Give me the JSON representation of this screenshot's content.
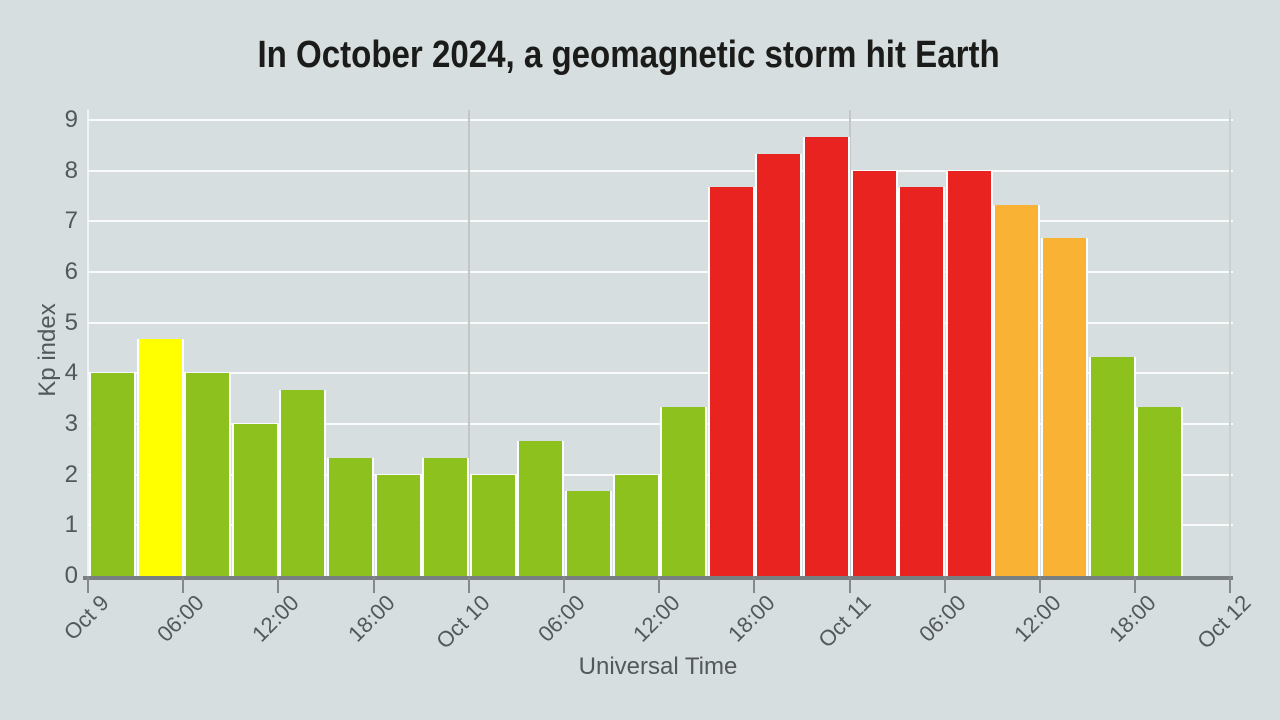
{
  "title": "In October 2024, a geomagnetic storm hit Earth",
  "y_axis": {
    "label": "Kp index",
    "ticks": [
      "0",
      "1",
      "2",
      "3",
      "4",
      "5",
      "6",
      "7",
      "8",
      "9"
    ]
  },
  "x_axis": {
    "label": "Universal Time",
    "ticks": [
      "Oct 9",
      "06:00",
      "12:00",
      "18:00",
      "Oct 10",
      "06:00",
      "12:00",
      "18:00",
      "Oct 11",
      "06:00",
      "12:00",
      "18:00",
      "Oct 12"
    ]
  },
  "palette": {
    "green": "#8DC21E",
    "yellow": "#FFFF00",
    "orange": "#F9B233",
    "red": "#E82320",
    "background": "#D7DEDF",
    "axis_line": "#7A7F82",
    "grid_white": "#FFFFFF",
    "day_gridline": "#C2C6C7",
    "right_boundary_line": "#CBD0D1",
    "text": "#53585B",
    "title_color": "#1B1B19"
  },
  "chart_data": {
    "type": "bar",
    "title": "In October 2024, a geomagnetic storm hit Earth",
    "xlabel": "Universal Time",
    "ylabel": "Kp index",
    "ylim": [
      0,
      9
    ],
    "grid": "horizontal white gridlines at each integer; vertical gray lines at day boundaries (Oct 10, Oct 11, Oct 12)",
    "legend": "none",
    "bar_interval_hours": 3,
    "x_tick_labels": [
      "Oct 9",
      "06:00",
      "12:00",
      "18:00",
      "Oct 10",
      "06:00",
      "12:00",
      "18:00",
      "Oct 11",
      "06:00",
      "12:00",
      "18:00",
      "Oct 12"
    ],
    "bars": [
      {
        "start": "Oct 9 00:00",
        "kp": 4.0,
        "color": "green"
      },
      {
        "start": "Oct 9 03:00",
        "kp": 4.67,
        "color": "yellow"
      },
      {
        "start": "Oct 9 06:00",
        "kp": 4.0,
        "color": "green"
      },
      {
        "start": "Oct 9 09:00",
        "kp": 3.0,
        "color": "green"
      },
      {
        "start": "Oct 9 12:00",
        "kp": 3.67,
        "color": "green"
      },
      {
        "start": "Oct 9 15:00",
        "kp": 2.33,
        "color": "green"
      },
      {
        "start": "Oct 9 18:00",
        "kp": 2.0,
        "color": "green"
      },
      {
        "start": "Oct 9 21:00",
        "kp": 2.33,
        "color": "green"
      },
      {
        "start": "Oct 10 00:00",
        "kp": 2.0,
        "color": "green"
      },
      {
        "start": "Oct 10 03:00",
        "kp": 2.67,
        "color": "green"
      },
      {
        "start": "Oct 10 06:00",
        "kp": 1.67,
        "color": "green"
      },
      {
        "start": "Oct 10 09:00",
        "kp": 2.0,
        "color": "green"
      },
      {
        "start": "Oct 10 12:00",
        "kp": 3.33,
        "color": "green"
      },
      {
        "start": "Oct 10 15:00",
        "kp": 7.67,
        "color": "red"
      },
      {
        "start": "Oct 10 18:00",
        "kp": 8.33,
        "color": "red"
      },
      {
        "start": "Oct 10 21:00",
        "kp": 8.67,
        "color": "red"
      },
      {
        "start": "Oct 11 00:00",
        "kp": 8.0,
        "color": "red"
      },
      {
        "start": "Oct 11 03:00",
        "kp": 7.67,
        "color": "red"
      },
      {
        "start": "Oct 11 06:00",
        "kp": 8.0,
        "color": "red"
      },
      {
        "start": "Oct 11 09:00",
        "kp": 7.33,
        "color": "orange"
      },
      {
        "start": "Oct 11 12:00",
        "kp": 6.67,
        "color": "orange"
      },
      {
        "start": "Oct 11 15:00",
        "kp": 4.33,
        "color": "green"
      },
      {
        "start": "Oct 11 18:00",
        "kp": 3.33,
        "color": "green"
      }
    ]
  }
}
